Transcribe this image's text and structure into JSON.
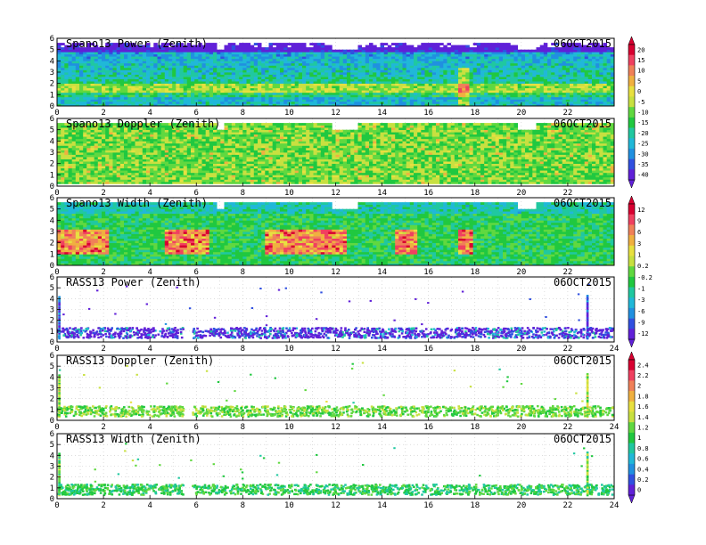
{
  "chart_data": [
    {
      "type": "heatmap",
      "title": "Spano13 Power (Zenith)",
      "date": "06OCT2015",
      "xlim": [
        0,
        24
      ],
      "ylim": [
        0,
        6
      ],
      "x_ticks": [
        "0",
        "2",
        "4",
        "6",
        "8",
        "10",
        "12",
        "14",
        "16",
        "18",
        "20",
        "22"
      ],
      "y_ticks": [
        "0",
        "1",
        "2",
        "3",
        "4",
        "5",
        "6"
      ],
      "colorbar": "A",
      "kind": "spano_power",
      "grid": true
    },
    {
      "type": "heatmap",
      "title": "Spano13 Doppler (Zenith)",
      "date": "06OCT2015",
      "xlim": [
        0,
        24
      ],
      "ylim": [
        0,
        6
      ],
      "x_ticks": [
        "0",
        "2",
        "4",
        "6",
        "8",
        "10",
        "12",
        "14",
        "16",
        "18",
        "20",
        "22"
      ],
      "y_ticks": [
        "0",
        "1",
        "2",
        "3",
        "4",
        "5",
        "6"
      ],
      "colorbar": "A",
      "kind": "spano_doppler",
      "grid": true
    },
    {
      "type": "heatmap",
      "title": "Spano13 Width (Zenith)",
      "date": "06OCT2015",
      "xlim": [
        0,
        24
      ],
      "ylim": [
        0,
        6
      ],
      "x_ticks": [
        "0",
        "2",
        "4",
        "6",
        "8",
        "10",
        "12",
        "14",
        "16",
        "18",
        "20",
        "22"
      ],
      "y_ticks": [
        "0",
        "1",
        "2",
        "3",
        "4",
        "5",
        "6"
      ],
      "colorbar": "B",
      "kind": "spano_width",
      "grid": true
    },
    {
      "type": "heatmap",
      "title": "RASS13 Power (Zenith)",
      "date": "06OCT2015",
      "xlim": [
        0,
        24
      ],
      "ylim": [
        0,
        6
      ],
      "x_ticks": [
        "0",
        "2",
        "4",
        "6",
        "8",
        "10",
        "12",
        "14",
        "16",
        "18",
        "20",
        "22",
        "24"
      ],
      "y_ticks": [
        "0",
        "1",
        "2",
        "3",
        "4",
        "5",
        "6"
      ],
      "colorbar": "B",
      "kind": "rass_power",
      "grid": true
    },
    {
      "type": "heatmap",
      "title": "RASS13 Doppler (Zenith)",
      "date": "06OCT2015",
      "xlim": [
        0,
        24
      ],
      "ylim": [
        0,
        6
      ],
      "x_ticks": [
        "0",
        "2",
        "4",
        "6",
        "8",
        "10",
        "12",
        "14",
        "16",
        "18",
        "20",
        "22",
        "24"
      ],
      "y_ticks": [
        "0",
        "1",
        "2",
        "3",
        "4",
        "5",
        "6"
      ],
      "colorbar": "C",
      "kind": "rass_doppler",
      "grid": true
    },
    {
      "type": "heatmap",
      "title": "RASS13 Width (Zenith)",
      "date": "06OCT2015",
      "xlim": [
        0,
        24
      ],
      "ylim": [
        0,
        6
      ],
      "x_ticks": [
        "0",
        "2",
        "4",
        "6",
        "8",
        "10",
        "12",
        "14",
        "16",
        "18",
        "20",
        "22",
        "24"
      ],
      "y_ticks": [
        "0",
        "1",
        "2",
        "3",
        "4",
        "5",
        "6"
      ],
      "colorbar": "C",
      "kind": "rass_width",
      "grid": true
    }
  ],
  "colorbars": {
    "A": {
      "labels": [
        "20",
        "15",
        "10",
        "5",
        "0",
        "-5",
        "-10",
        "-15",
        "-20",
        "-25",
        "-30",
        "-35",
        "-40"
      ],
      "colors": [
        "#d80030",
        "#f04060",
        "#f08058",
        "#f0b040",
        "#e8e040",
        "#c8e040",
        "#60d840",
        "#20c840",
        "#20c8a0",
        "#20b8d8",
        "#2090e0",
        "#3050e0",
        "#6020d8"
      ]
    },
    "B": {
      "labels": [
        "12",
        "9",
        "6",
        "3",
        "1",
        "0.2",
        "-0.2",
        "-1",
        "-3",
        "-6",
        "-9",
        "-12"
      ],
      "colors": [
        "#d80030",
        "#f04060",
        "#f08058",
        "#f0b040",
        "#e8e040",
        "#c8e040",
        "#60d840",
        "#20c840",
        "#20c8a0",
        "#20b8d8",
        "#2090e0",
        "#3050e0",
        "#6020d8"
      ]
    },
    "C": {
      "labels": [
        "2.4",
        "2.2",
        "2",
        "1.8",
        "1.6",
        "1.4",
        "1.2",
        "1",
        "0.8",
        "0.6",
        "0.4",
        "0.2",
        "0"
      ],
      "colors": [
        "#d80030",
        "#f04060",
        "#f08058",
        "#f0b040",
        "#e8e040",
        "#c8e040",
        "#60d840",
        "#20c840",
        "#20c8a0",
        "#20b8d8",
        "#2090e0",
        "#3050e0",
        "#6020d8"
      ]
    }
  }
}
